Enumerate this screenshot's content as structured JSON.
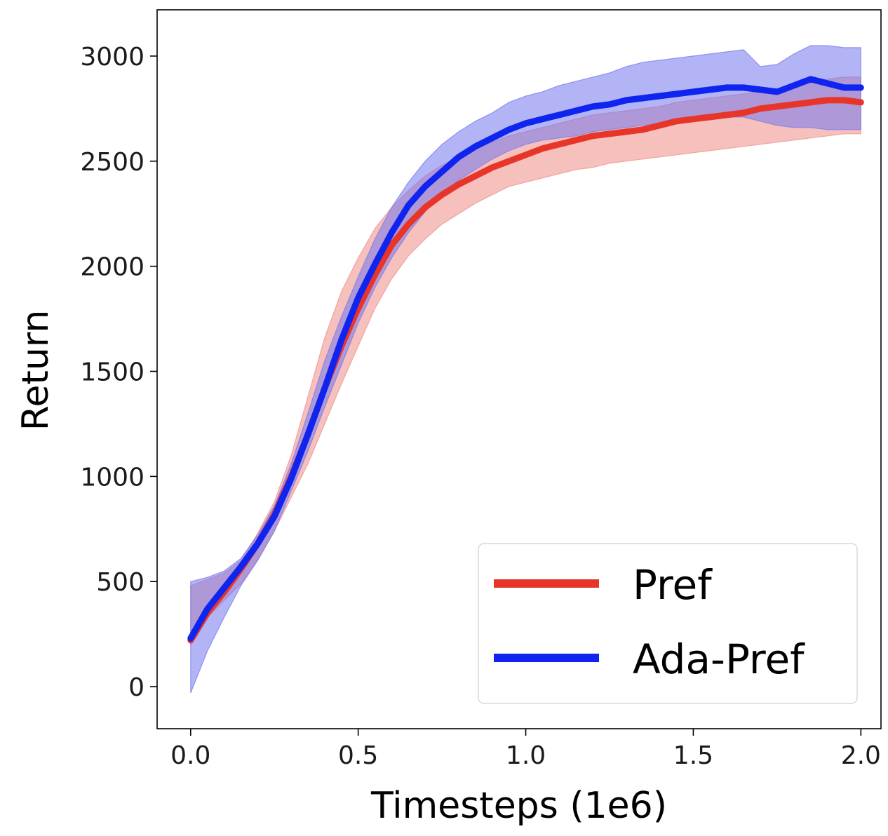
{
  "chart_data": {
    "type": "line",
    "title": "",
    "xlabel": "Timesteps (1e6)",
    "ylabel": "Return",
    "xlim": [
      -0.1,
      2.06
    ],
    "ylim": [
      -200,
      3220
    ],
    "xticks": [
      0.0,
      0.5,
      1.0,
      1.5,
      2.0
    ],
    "xtick_labels": [
      "0.0",
      "0.5",
      "1.0",
      "1.5",
      "2.0"
    ],
    "yticks": [
      0,
      500,
      1000,
      1500,
      2000,
      2500,
      3000
    ],
    "ytick_labels": [
      "0",
      "500",
      "1000",
      "1500",
      "2000",
      "2500",
      "3000"
    ],
    "grid": false,
    "legend_position": "bottom-right",
    "x": [
      0.0,
      0.05,
      0.1,
      0.15,
      0.2,
      0.25,
      0.3,
      0.35,
      0.4,
      0.45,
      0.5,
      0.55,
      0.6,
      0.65,
      0.7,
      0.75,
      0.8,
      0.85,
      0.9,
      0.95,
      1.0,
      1.05,
      1.1,
      1.15,
      1.2,
      1.25,
      1.3,
      1.35,
      1.4,
      1.45,
      1.5,
      1.55,
      1.6,
      1.65,
      1.7,
      1.75,
      1.8,
      1.85,
      1.9,
      1.95,
      2.0
    ],
    "series": [
      {
        "name": "Pref",
        "color": "#e8352a",
        "band_color": "#ee8c87",
        "mean": [
          220,
          350,
          450,
          560,
          680,
          820,
          1000,
          1200,
          1420,
          1620,
          1800,
          1960,
          2100,
          2200,
          2280,
          2340,
          2390,
          2430,
          2470,
          2500,
          2530,
          2560,
          2580,
          2600,
          2620,
          2630,
          2640,
          2650,
          2670,
          2690,
          2700,
          2710,
          2720,
          2730,
          2750,
          2760,
          2770,
          2780,
          2790,
          2790,
          2780
        ],
        "upper": [
          480,
          510,
          540,
          600,
          730,
          880,
          1100,
          1380,
          1660,
          1880,
          2040,
          2180,
          2280,
          2360,
          2430,
          2480,
          2520,
          2560,
          2590,
          2620,
          2640,
          2660,
          2680,
          2700,
          2720,
          2730,
          2740,
          2750,
          2760,
          2780,
          2790,
          2800,
          2810,
          2820,
          2830,
          2840,
          2860,
          2870,
          2890,
          2900,
          2900
        ],
        "lower": [
          200,
          330,
          410,
          490,
          600,
          740,
          900,
          1060,
          1250,
          1440,
          1620,
          1800,
          1940,
          2050,
          2130,
          2200,
          2250,
          2300,
          2340,
          2380,
          2400,
          2420,
          2440,
          2460,
          2470,
          2490,
          2500,
          2510,
          2520,
          2530,
          2540,
          2550,
          2560,
          2570,
          2580,
          2590,
          2600,
          2610,
          2620,
          2630,
          2630
        ]
      },
      {
        "name": "Ada-Pref",
        "color": "#1024f0",
        "band_color": "#7276ee",
        "mean": [
          230,
          370,
          470,
          570,
          680,
          810,
          990,
          1200,
          1420,
          1650,
          1850,
          2010,
          2160,
          2290,
          2380,
          2450,
          2520,
          2570,
          2610,
          2650,
          2680,
          2700,
          2720,
          2740,
          2760,
          2770,
          2790,
          2800,
          2810,
          2820,
          2830,
          2840,
          2850,
          2850,
          2840,
          2830,
          2860,
          2890,
          2870,
          2850,
          2850
        ],
        "upper": [
          500,
          520,
          550,
          610,
          720,
          860,
          1060,
          1300,
          1550,
          1760,
          1950,
          2130,
          2280,
          2400,
          2500,
          2580,
          2640,
          2690,
          2730,
          2780,
          2810,
          2830,
          2860,
          2880,
          2900,
          2920,
          2950,
          2970,
          2980,
          2990,
          3000,
          3010,
          3020,
          3030,
          2950,
          2960,
          3010,
          3050,
          3050,
          3040,
          3040
        ],
        "lower": [
          -30,
          170,
          330,
          480,
          600,
          740,
          930,
          1120,
          1330,
          1530,
          1730,
          1900,
          2040,
          2160,
          2260,
          2340,
          2410,
          2460,
          2510,
          2550,
          2580,
          2600,
          2610,
          2620,
          2640,
          2650,
          2660,
          2670,
          2680,
          2690,
          2700,
          2700,
          2710,
          2710,
          2690,
          2670,
          2660,
          2660,
          2650,
          2650,
          2650
        ]
      }
    ]
  }
}
